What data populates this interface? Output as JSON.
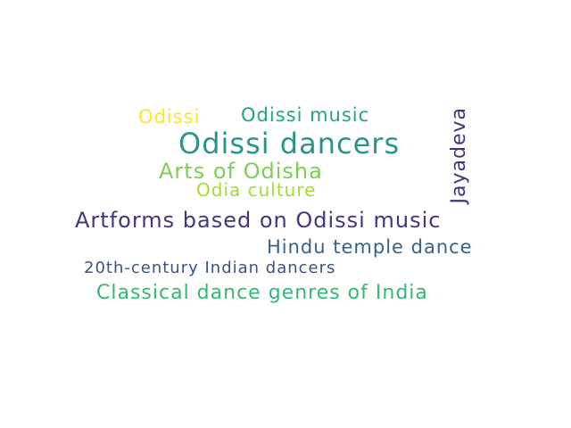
{
  "word_cloud": {
    "words": [
      {
        "text": "Odissi",
        "color": "#fde725"
      },
      {
        "text": "Odissi music",
        "color": "#21a585"
      },
      {
        "text": "Odissi dancers",
        "color": "#2a948c"
      },
      {
        "text": "Jayadeva",
        "color": "#46337e"
      },
      {
        "text": "Arts of Odisha",
        "color": "#7ad151"
      },
      {
        "text": "Odia culture",
        "color": "#a6db36"
      },
      {
        "text": "Artforms based on Odissi music",
        "color": "#463480"
      },
      {
        "text": "Hindu temple dance",
        "color": "#33638d"
      },
      {
        "text": "20th-century Indian dancers",
        "color": "#3b528b"
      },
      {
        "text": "Classical dance genres of India",
        "color": "#35b779"
      }
    ]
  }
}
